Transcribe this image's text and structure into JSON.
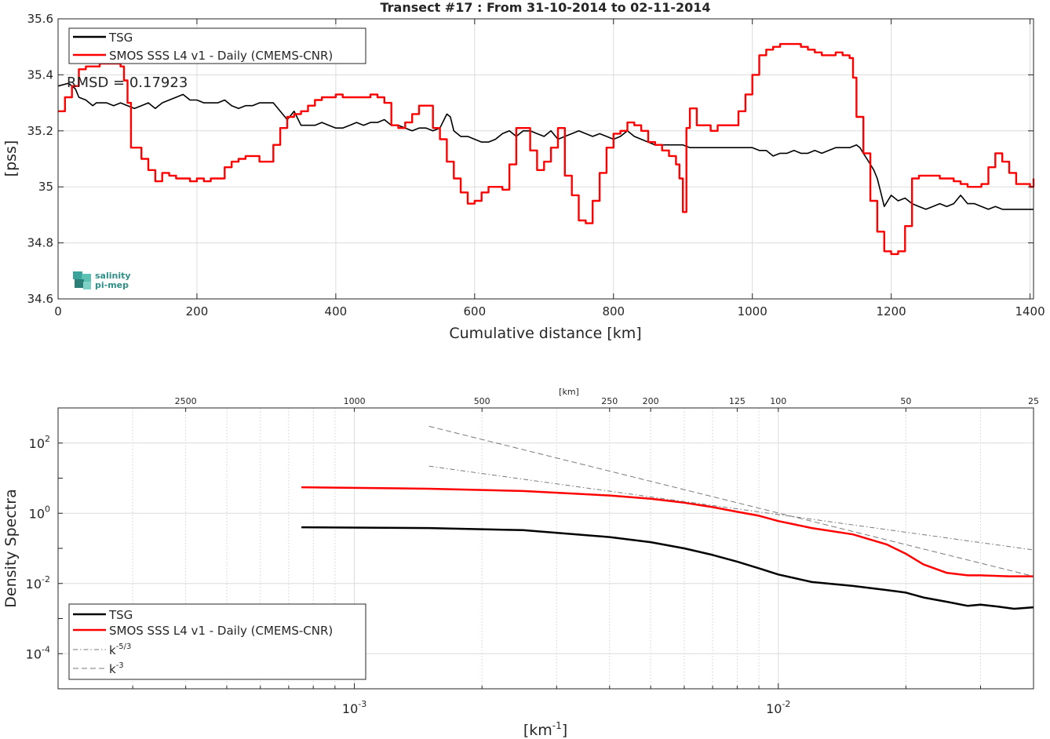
{
  "chart_data": [
    {
      "type": "line",
      "title": "Transect #17 : From 31-10-2014 to 02-11-2014",
      "xlabel": "Cumulative distance [km]",
      "ylabel": "[pss]",
      "xlim": [
        0,
        1405
      ],
      "ylim": [
        34.6,
        35.6
      ],
      "xticks": [
        0,
        200,
        400,
        600,
        800,
        1000,
        1200,
        1400
      ],
      "yticks": [
        34.6,
        34.8,
        35,
        35.2,
        35.4,
        35.6
      ],
      "ytick_labels": [
        "34.6",
        "34.8",
        "35",
        "35.2",
        "35.4",
        "35.6"
      ],
      "grid": true,
      "legend": "top-left",
      "annotation": "RMSD = 0.17923",
      "logo_text": [
        "salinity",
        "pi-mep"
      ],
      "series": [
        {
          "name": "TSG",
          "color": "#000000",
          "x": [
            0,
            15,
            25,
            30,
            40,
            50,
            55,
            60,
            70,
            80,
            90,
            100,
            110,
            120,
            130,
            140,
            150,
            160,
            170,
            180,
            190,
            200,
            210,
            220,
            230,
            240,
            250,
            260,
            270,
            280,
            290,
            300,
            310,
            320,
            330,
            340,
            350,
            360,
            370,
            380,
            390,
            400,
            410,
            420,
            430,
            440,
            450,
            460,
            470,
            480,
            490,
            500,
            510,
            520,
            530,
            540,
            550,
            560,
            565,
            570,
            580,
            590,
            600,
            610,
            620,
            630,
            640,
            650,
            660,
            670,
            680,
            690,
            700,
            710,
            720,
            730,
            740,
            750,
            760,
            770,
            780,
            790,
            800,
            810,
            820,
            830,
            840,
            850,
            860,
            870,
            880,
            890,
            900,
            910,
            920,
            930,
            940,
            950,
            960,
            970,
            980,
            990,
            1000,
            1010,
            1020,
            1030,
            1040,
            1050,
            1060,
            1070,
            1080,
            1090,
            1100,
            1110,
            1120,
            1130,
            1140,
            1150,
            1155,
            1160,
            1165,
            1170,
            1175,
            1180,
            1185,
            1190,
            1200,
            1210,
            1220,
            1230,
            1240,
            1250,
            1260,
            1270,
            1280,
            1290,
            1300,
            1310,
            1320,
            1330,
            1340,
            1350,
            1360,
            1370,
            1380,
            1390,
            1400,
            1405
          ],
          "y": [
            35.36,
            35.37,
            35.35,
            35.32,
            35.31,
            35.29,
            35.3,
            35.3,
            35.3,
            35.29,
            35.3,
            35.29,
            35.28,
            35.29,
            35.3,
            35.28,
            35.3,
            35.31,
            35.32,
            35.33,
            35.31,
            35.31,
            35.3,
            35.3,
            35.3,
            35.31,
            35.29,
            35.28,
            35.29,
            35.29,
            35.3,
            35.3,
            35.3,
            35.27,
            35.24,
            35.27,
            35.22,
            35.22,
            35.22,
            35.23,
            35.22,
            35.21,
            35.21,
            35.22,
            35.23,
            35.22,
            35.23,
            35.23,
            35.24,
            35.22,
            35.22,
            35.21,
            35.2,
            35.21,
            35.21,
            35.2,
            35.21,
            35.26,
            35.25,
            35.2,
            35.18,
            35.18,
            35.17,
            35.16,
            35.16,
            35.17,
            35.19,
            35.2,
            35.18,
            35.2,
            35.2,
            35.19,
            35.18,
            35.2,
            35.17,
            35.18,
            35.19,
            35.2,
            35.19,
            35.18,
            35.19,
            35.18,
            35.17,
            35.18,
            35.2,
            35.18,
            35.17,
            35.16,
            35.15,
            35.15,
            35.15,
            35.15,
            35.15,
            35.14,
            35.14,
            35.14,
            35.14,
            35.14,
            35.14,
            35.14,
            35.14,
            35.14,
            35.14,
            35.13,
            35.13,
            35.11,
            35.12,
            35.12,
            35.13,
            35.12,
            35.12,
            35.13,
            35.12,
            35.13,
            35.14,
            35.14,
            35.14,
            35.15,
            35.14,
            35.12,
            35.1,
            35.08,
            35.06,
            35.03,
            34.98,
            34.93,
            34.97,
            34.95,
            34.96,
            34.94,
            34.93,
            34.92,
            34.93,
            34.94,
            34.93,
            34.94,
            34.97,
            34.94,
            34.94,
            34.93,
            34.92,
            34.93,
            34.92,
            34.92,
            34.92,
            34.92,
            34.92,
            34.92
          ]
        },
        {
          "name": "SMOS SSS L4 v1 - Daily (CMEMS-CNR)",
          "color": "#ff0000",
          "x": [
            0,
            10,
            20,
            30,
            40,
            50,
            60,
            70,
            80,
            90,
            95,
            100,
            105,
            110,
            120,
            130,
            140,
            150,
            160,
            170,
            180,
            190,
            200,
            210,
            220,
            230,
            240,
            250,
            260,
            270,
            280,
            290,
            300,
            310,
            320,
            330,
            340,
            350,
            360,
            370,
            380,
            390,
            400,
            410,
            420,
            430,
            440,
            450,
            460,
            470,
            480,
            490,
            500,
            510,
            520,
            530,
            540,
            550,
            560,
            570,
            580,
            590,
            600,
            610,
            620,
            630,
            640,
            650,
            660,
            670,
            680,
            690,
            700,
            710,
            720,
            730,
            740,
            750,
            760,
            770,
            780,
            790,
            800,
            810,
            820,
            830,
            840,
            850,
            860,
            870,
            880,
            890,
            895,
            900,
            905,
            910,
            920,
            930,
            940,
            950,
            960,
            970,
            980,
            990,
            1000,
            1010,
            1020,
            1030,
            1040,
            1050,
            1060,
            1070,
            1080,
            1090,
            1100,
            1110,
            1120,
            1130,
            1140,
            1145,
            1150,
            1160,
            1170,
            1180,
            1190,
            1200,
            1210,
            1220,
            1230,
            1240,
            1250,
            1260,
            1270,
            1280,
            1290,
            1300,
            1310,
            1320,
            1330,
            1340,
            1350,
            1360,
            1370,
            1380,
            1390,
            1400,
            1405
          ],
          "y": [
            35.27,
            35.32,
            35.36,
            35.42,
            35.43,
            35.43,
            35.44,
            35.44,
            35.44,
            35.43,
            35.38,
            35.3,
            35.14,
            35.14,
            35.1,
            35.06,
            35.02,
            35.05,
            35.04,
            35.03,
            35.03,
            35.02,
            35.03,
            35.02,
            35.03,
            35.03,
            35.07,
            35.09,
            35.1,
            35.11,
            35.11,
            35.09,
            35.09,
            35.15,
            35.21,
            35.25,
            35.26,
            35.27,
            35.29,
            35.31,
            35.32,
            35.32,
            35.33,
            35.32,
            35.32,
            35.32,
            35.32,
            35.33,
            35.32,
            35.3,
            35.22,
            35.21,
            35.23,
            35.26,
            35.29,
            35.29,
            35.21,
            35.17,
            35.09,
            35.03,
            34.98,
            34.94,
            34.95,
            34.98,
            35.0,
            35.0,
            34.99,
            35.08,
            35.21,
            35.21,
            35.13,
            35.06,
            35.09,
            35.14,
            35.21,
            35.04,
            34.97,
            34.88,
            34.87,
            34.95,
            35.05,
            35.14,
            35.19,
            35.2,
            35.23,
            35.22,
            35.2,
            35.16,
            35.15,
            35.13,
            35.11,
            35.08,
            35.03,
            34.91,
            35.21,
            35.28,
            35.22,
            35.22,
            35.2,
            35.22,
            35.22,
            35.22,
            35.27,
            35.33,
            35.4,
            35.47,
            35.49,
            35.5,
            35.51,
            35.51,
            35.51,
            35.5,
            35.49,
            35.48,
            35.47,
            35.47,
            35.48,
            35.47,
            35.46,
            35.39,
            35.25,
            35.12,
            34.95,
            34.84,
            34.77,
            34.76,
            34.77,
            34.86,
            35.03,
            35.04,
            35.04,
            35.04,
            35.03,
            35.03,
            35.02,
            35.01,
            35.0,
            35.0,
            35.01,
            35.07,
            35.12,
            35.09,
            35.05,
            35.01,
            35.01,
            35.0,
            35.03
          ]
        }
      ]
    },
    {
      "type": "line",
      "title": "",
      "xlabel": "[km⁻¹]",
      "xlabel_parts": [
        "[km",
        "-1",
        "]"
      ],
      "ylabel": "Density Spectra",
      "xscale": "log",
      "yscale": "log",
      "xlim": [
        0.0002,
        0.04
      ],
      "ylim": [
        1e-05,
        1000
      ],
      "xticks": [
        0.001,
        0.01
      ],
      "xtick_labels": [
        {
          "base": "10",
          "exp": "-3"
        },
        {
          "base": "10",
          "exp": "-2"
        }
      ],
      "yticks": [
        0.0001,
        0.01,
        1,
        100
      ],
      "ytick_labels": [
        {
          "base": "10",
          "exp": "-4"
        },
        {
          "base": "10",
          "exp": "-2"
        },
        {
          "base": "10",
          "exp": "0"
        },
        {
          "base": "10",
          "exp": "2"
        }
      ],
      "top_axis_label": "[km]",
      "top_ticks": [
        2500,
        1000,
        500,
        250,
        200,
        125,
        100,
        50,
        25
      ],
      "grid": true,
      "legend": "bottom-left",
      "series": [
        {
          "name": "TSG",
          "color": "#000000",
          "x": [
            0.00075,
            0.0015,
            0.0025,
            0.004,
            0.005,
            0.006,
            0.007,
            0.008,
            0.009,
            0.01,
            0.012,
            0.015,
            0.018,
            0.02,
            0.022,
            0.025,
            0.028,
            0.03,
            0.033,
            0.036,
            0.04
          ],
          "y": [
            0.4,
            0.38,
            0.33,
            0.21,
            0.15,
            0.1,
            0.065,
            0.042,
            0.027,
            0.018,
            0.011,
            0.0085,
            0.0065,
            0.0055,
            0.004,
            0.003,
            0.0023,
            0.0025,
            0.0022,
            0.0019,
            0.0021
          ]
        },
        {
          "name": "SMOS SSS L4 v1 - Daily (CMEMS-CNR)",
          "color": "#ff0000",
          "x": [
            0.00075,
            0.0015,
            0.0025,
            0.004,
            0.005,
            0.006,
            0.007,
            0.008,
            0.009,
            0.01,
            0.012,
            0.015,
            0.018,
            0.02,
            0.022,
            0.025,
            0.028,
            0.03,
            0.035,
            0.04
          ],
          "y": [
            5.5,
            5.0,
            4.3,
            3.2,
            2.6,
            2.0,
            1.5,
            1.1,
            0.85,
            0.6,
            0.38,
            0.25,
            0.13,
            0.07,
            0.035,
            0.02,
            0.017,
            0.017,
            0.016,
            0.016
          ]
        },
        {
          "name": "k-5/3",
          "legend_parts": [
            "k",
            "-5/3"
          ],
          "color": "#7a7a7a",
          "dash": "dashdot",
          "x": [
            0.0015,
            0.04
          ],
          "y": [
            22,
            0.09
          ]
        },
        {
          "name": "k-3",
          "legend_parts": [
            "k",
            "-3"
          ],
          "color": "#7a7a7a",
          "dash": "dashed",
          "x": [
            0.0015,
            0.04
          ],
          "y": [
            300,
            0.016
          ]
        }
      ]
    }
  ]
}
